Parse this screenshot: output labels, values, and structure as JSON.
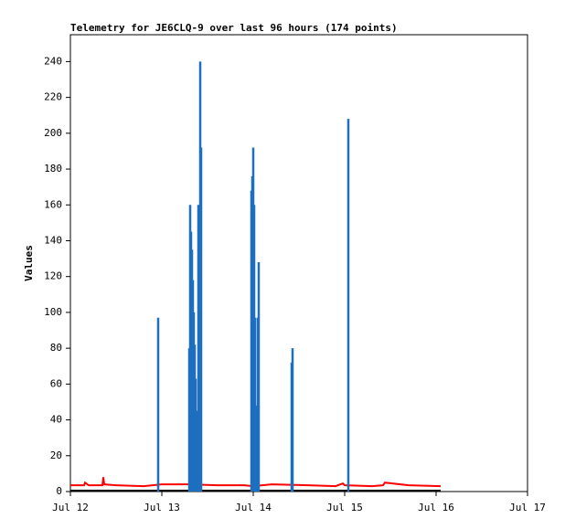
{
  "chart_data": {
    "type": "line",
    "title": "Telemetry for JE6CLQ-9 over last 96 hours (174 points)",
    "y_label": "Values",
    "xlim": [
      12,
      17
    ],
    "xticks": [
      {
        "value": 12,
        "label": "Jul 12"
      },
      {
        "value": 13,
        "label": "Jul 13"
      },
      {
        "value": 14,
        "label": "Jul 14"
      },
      {
        "value": 15,
        "label": "Jul 15"
      },
      {
        "value": 16,
        "label": "Jul 16"
      },
      {
        "value": 17,
        "label": "Jul 17"
      }
    ],
    "ylim": [
      0,
      255
    ],
    "yticks": [
      0,
      20,
      40,
      60,
      80,
      100,
      120,
      140,
      160,
      180,
      200,
      220,
      240
    ],
    "series": [
      {
        "color": "#000000",
        "style": "line",
        "x": [
          12.0,
          16.05
        ],
        "values": [
          0.5,
          0.5
        ]
      },
      {
        "color": "#ff0000",
        "style": "line",
        "x": [
          12.0,
          12.15,
          12.16,
          12.2,
          12.35,
          12.36,
          12.37,
          12.5,
          12.8,
          12.9,
          13.0,
          13.3,
          13.6,
          13.9,
          14.0,
          14.2,
          14.6,
          14.9,
          14.98,
          15.0,
          15.3,
          15.42,
          15.44,
          15.7,
          16.05
        ],
        "values": [
          3.5,
          3.5,
          5,
          3.5,
          3.5,
          8,
          4,
          3.5,
          3,
          3.5,
          4,
          4,
          3.5,
          3.5,
          3,
          4,
          3.5,
          3,
          4.5,
          3.5,
          3,
          3.5,
          5,
          3.5,
          3
        ]
      },
      {
        "color": "#1f6fbf",
        "style": "impulse",
        "x": [
          12.96,
          13.3,
          13.31,
          13.32,
          13.33,
          13.34,
          13.35,
          13.36,
          13.37,
          13.38,
          13.39,
          13.4,
          13.41,
          13.42,
          13.43,
          13.98,
          13.99,
          14.0,
          14.01,
          14.02,
          14.03,
          14.05,
          14.06,
          14.42,
          14.43,
          15.04
        ],
        "values": [
          97,
          80,
          160,
          145,
          135,
          118,
          100,
          82,
          63,
          45,
          28,
          160,
          10,
          240,
          192,
          168,
          176,
          192,
          160,
          97,
          48,
          97,
          128,
          72,
          80,
          208
        ]
      }
    ]
  }
}
